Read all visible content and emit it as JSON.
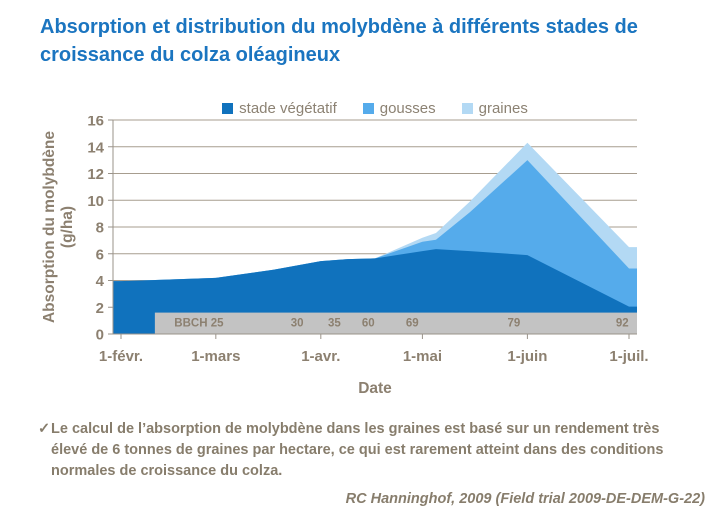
{
  "header": {
    "title": "Absorption et distribution du molybdène à différents stades de croissance du colza oléagineux"
  },
  "chart_data": {
    "type": "area",
    "stacked": true,
    "title": "",
    "xlabel": "Date",
    "ylabel": "Absorption du molybdène (g/ha)",
    "ylabel_lines": [
      "Absorption du molybdène",
      "(g/ha)"
    ],
    "ylim": [
      0,
      16
    ],
    "ytick_step": 2,
    "grid": true,
    "legend_position": "top",
    "x_tick_labels": [
      "1-févr.",
      "1-mars",
      "1-avr.",
      "1-mai",
      "1-juin",
      "1-juil."
    ],
    "x_tick_days": [
      0,
      28,
      59,
      89,
      120,
      150
    ],
    "x_days": [
      0,
      28,
      45,
      59,
      67,
      75,
      89,
      93,
      103,
      120,
      150
    ],
    "x_day_dates": [
      "1 févr.",
      "1 mars",
      "17 mars",
      "1 avr.",
      "8 avr.",
      "16 avr.",
      "1 mai",
      "5 mai",
      "15 mai",
      "1 juin",
      "1 juil."
    ],
    "series": [
      {
        "name": "stade végétatif",
        "color": "#1072BD",
        "values": [
          3.95,
          4.2,
          4.8,
          5.45,
          5.6,
          5.65,
          6.2,
          6.35,
          6.2,
          5.9,
          2.05
        ]
      },
      {
        "name": "gousses",
        "color": "#55ABEB",
        "values": [
          0,
          0,
          0,
          0,
          0,
          0,
          0.7,
          0.7,
          2.9,
          7.1,
          2.85
        ]
      },
      {
        "name": "graines",
        "color": "#B3D9F4",
        "values": [
          0,
          0,
          0,
          0,
          0,
          0,
          0.3,
          0.5,
          0.8,
          1.3,
          1.6
        ]
      }
    ],
    "bbch_band": {
      "start_day": 10,
      "top_value": 1.6,
      "color": "#C3C3C3",
      "stages": [
        {
          "label": "BBCH 25",
          "day": 23
        },
        {
          "label": "30",
          "day": 52
        },
        {
          "label": "35",
          "day": 63
        },
        {
          "label": "60",
          "day": 73
        },
        {
          "label": "69",
          "day": 86
        },
        {
          "label": "79",
          "day": 116
        },
        {
          "label": "92",
          "day": 148
        }
      ]
    }
  },
  "footnote": {
    "check": "✓",
    "text": "Le calcul de l’absorption de molybdène dans les graines est basé sur un rendement très élevé de 6 tonnes de graines par hectare, ce qui est rarement atteint dans des conditions normales de croissance du colza."
  },
  "attribution": "RC Hanninghof, 2009 (Field trial 2009-DE-DEM-G-22)",
  "colors": {
    "title_blue": "#1B75C0",
    "text_brown": "#8C8070",
    "band_gray": "#C3C3C3",
    "gridline": "#A79D8F"
  }
}
